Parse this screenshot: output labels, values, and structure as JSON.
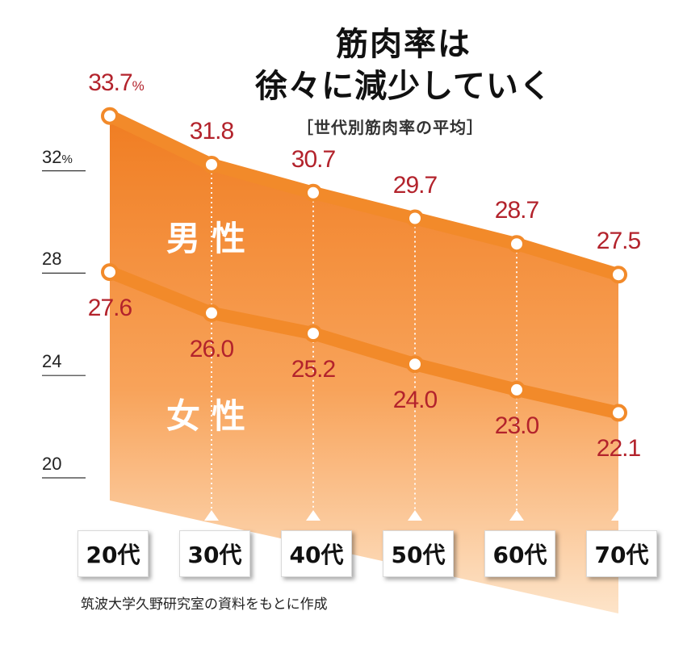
{
  "title_line1": "筋肉率は",
  "title_line2": "徐々に減少していく",
  "subtitle": "［世代別筋肉率の平均］",
  "source": "筑波大学久野研究室の資料をもとに作成",
  "unit": "%",
  "colors": {
    "fill_light": "#fcd2a6",
    "fill_mid": "#f8a35a",
    "fill_dark": "#f07d22",
    "line": "#f28a2a",
    "value_text": "#b3232c"
  },
  "chart_data": {
    "type": "line",
    "title": "筋肉率は徐々に減少していく",
    "subtitle": "［世代別筋肉率の平均］",
    "categories": [
      "20代",
      "30代",
      "40代",
      "50代",
      "60代",
      "70代"
    ],
    "series": [
      {
        "name": "男性",
        "values": [
          33.7,
          31.8,
          30.7,
          29.7,
          28.7,
          27.5
        ]
      },
      {
        "name": "女性",
        "values": [
          27.6,
          26.0,
          25.2,
          24.0,
          23.0,
          22.1
        ]
      }
    ],
    "value_labels": {
      "男性": [
        "33.7",
        "31.8",
        "30.7",
        "29.7",
        "28.7",
        "27.5"
      ],
      "女性": [
        "27.6",
        "26.0",
        "25.2",
        "24.0",
        "23.0",
        "22.1"
      ]
    },
    "yticks": [
      "32",
      "28",
      "24",
      "20"
    ],
    "ytick_values": [
      32,
      28,
      24,
      20
    ],
    "ylim": [
      20,
      34
    ],
    "grid": false,
    "fill": "area"
  }
}
